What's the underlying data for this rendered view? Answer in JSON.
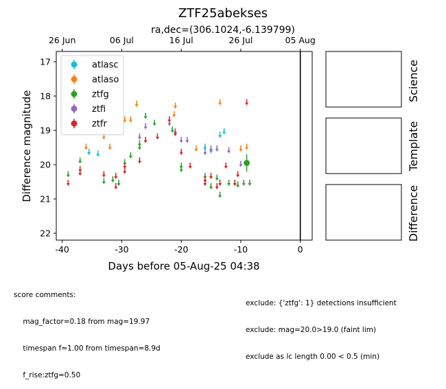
{
  "chart_data": {
    "type": "scatter",
    "title": "ZTF25abekses",
    "subtitle": "ra,dec=(306.1024,-6.139799)",
    "xlabel": "Days before 05-Aug-25 04:38",
    "ylabel": "Difference magnitude",
    "xlim": [
      -41,
      2
    ],
    "ylim": [
      22.2,
      16.7
    ],
    "x_ticks": [
      -40,
      -30,
      -20,
      -10,
      0
    ],
    "y_ticks": [
      17,
      18,
      19,
      20,
      21,
      22
    ],
    "top_axis_ticks": [
      {
        "label": "26 Jun",
        "x": -40
      },
      {
        "label": "06 Jul",
        "x": -30
      },
      {
        "label": "16 Jul",
        "x": -20
      },
      {
        "label": "26 Jul",
        "x": -10
      },
      {
        "label": "05 Aug",
        "x": 0
      }
    ],
    "vertical_line_x": 0,
    "legend_position": "upper-left",
    "series": [
      {
        "name": "atlasc",
        "color": "#17becf",
        "kind": "limit",
        "points": [
          [
            -35.5,
            19.6
          ],
          [
            -34,
            19.65
          ],
          [
            -16,
            19.45
          ],
          [
            -15,
            19.55
          ],
          [
            -13.5,
            19.1
          ],
          [
            -12.8,
            19.0
          ]
        ]
      },
      {
        "name": "atlaso",
        "color": "#ff7f0e",
        "kind": "limit",
        "points": [
          [
            -36,
            19.45
          ],
          [
            -33,
            19.15
          ],
          [
            -32,
            19.45
          ],
          [
            -29.5,
            18.65
          ],
          [
            -28.5,
            18.65
          ],
          [
            -27.5,
            18.2
          ],
          [
            -22,
            18.75
          ],
          [
            -21.2,
            18.5
          ],
          [
            -21,
            18.25
          ],
          [
            -17.5,
            19.5
          ],
          [
            -13.5,
            18.15
          ],
          [
            -10,
            19.5
          ],
          [
            -9,
            19.45
          ]
        ]
      },
      {
        "name": "ztfg",
        "color": "#2ca02c",
        "kind": "limit",
        "points": [
          [
            -39,
            20.25
          ],
          [
            -37,
            19.85
          ],
          [
            -33,
            20.45
          ],
          [
            -31.5,
            20.4
          ],
          [
            -30.5,
            20.5
          ],
          [
            -29.5,
            19.9
          ],
          [
            -28.5,
            19.7
          ],
          [
            -27,
            19.45
          ],
          [
            -27,
            19.35
          ],
          [
            -26,
            18.55
          ],
          [
            -24.5,
            18.75
          ],
          [
            -21.5,
            18.95
          ],
          [
            -20,
            20.1
          ],
          [
            -20,
            20.0
          ],
          [
            -16,
            20.3
          ],
          [
            -15,
            20.6
          ],
          [
            -14,
            20.35
          ],
          [
            -13.5,
            20.85
          ],
          [
            -12,
            20.5
          ],
          [
            -10.5,
            20.55
          ],
          [
            -9.5,
            20.5
          ],
          [
            -8.5,
            20.5
          ]
        ]
      },
      {
        "name": "ztfi",
        "color": "#9467bd",
        "kind": "limit",
        "points": [
          [
            -27,
            19.15
          ],
          [
            -26,
            18.85
          ],
          [
            -22,
            18.75
          ],
          [
            -21,
            19.0
          ],
          [
            -20,
            19.25
          ],
          [
            -19,
            19.25
          ],
          [
            -16,
            19.6
          ],
          [
            -15,
            19.5
          ],
          [
            -14,
            19.5
          ],
          [
            -12,
            19.55
          ],
          [
            -10,
            19.95
          ]
        ]
      },
      {
        "name": "ztfr",
        "color": "#d62728",
        "kind": "limit",
        "points": [
          [
            -39,
            20.5
          ],
          [
            -37,
            20.1
          ],
          [
            -37,
            20.2
          ],
          [
            -33,
            20.25
          ],
          [
            -31,
            20.3
          ],
          [
            -31,
            20.6
          ],
          [
            -29.5,
            20.0
          ],
          [
            -29.5,
            20.15
          ],
          [
            -27,
            19.85
          ],
          [
            -26,
            19.25
          ],
          [
            -24,
            19.15
          ],
          [
            -22,
            18.65
          ],
          [
            -21,
            19.05
          ],
          [
            -20,
            19.6
          ],
          [
            -18.5,
            20.0
          ],
          [
            -16,
            20.4
          ],
          [
            -16,
            20.5
          ],
          [
            -15,
            20.3
          ],
          [
            -14,
            20.6
          ],
          [
            -13.5,
            20.5
          ],
          [
            -12.5,
            20.0
          ],
          [
            -11,
            20.5
          ],
          [
            -10.5,
            20.25
          ],
          [
            -9,
            18.15
          ]
        ]
      },
      {
        "name": "ztfr_detection",
        "color": "#2ca02c",
        "kind": "detection",
        "points": [
          [
            -9,
            19.95,
            0.25
          ]
        ]
      }
    ]
  },
  "side_panels": [
    "Science",
    "Template",
    "Difference"
  ],
  "notes_left": [
    "score comments:",
    "    mag_factor=0.18 from mag=19.97",
    "    timespan f=1.00 from timespan=8.9d",
    "    f_rise:ztfg=0.50"
  ],
  "notes_right": [
    "exclude: {'ztfg': 1} detections insufficient",
    "exclude: mag=20.0>19.0 (faint lim)",
    "exclude as lc length 0.00 < 0.5 (min)"
  ],
  "colors": {
    "frame": "#000000",
    "background": "#ffffff"
  }
}
